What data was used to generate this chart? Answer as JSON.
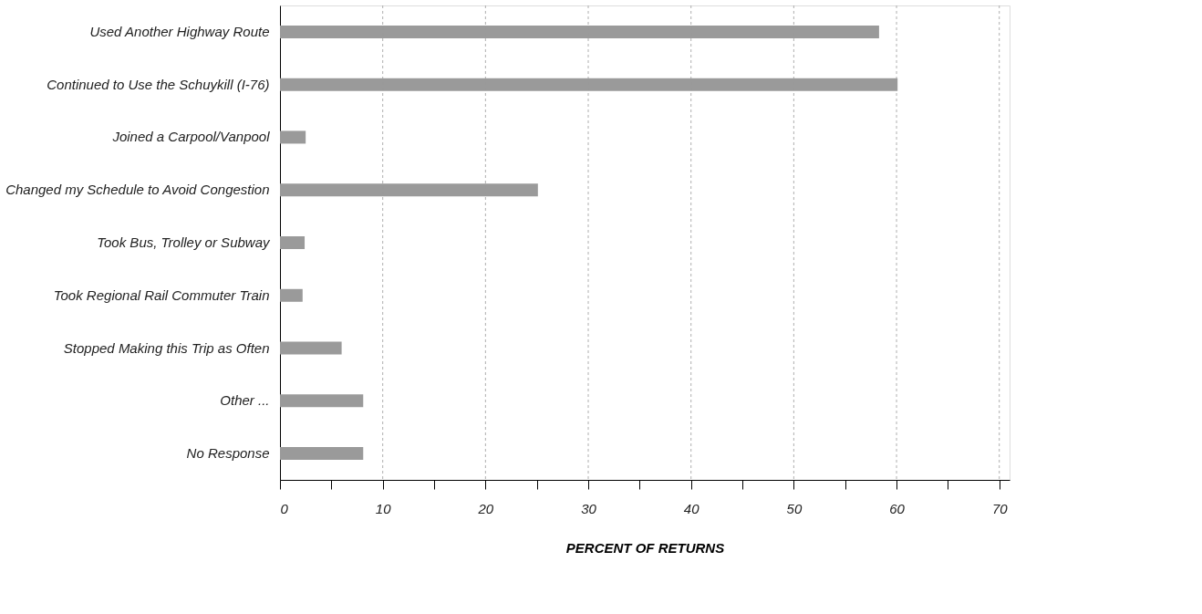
{
  "chart_data": {
    "type": "bar",
    "orientation": "horizontal",
    "xlabel": "PERCENT OF RETURNS",
    "categories": [
      "Used Another Highway Route",
      "Continued to Use the Schuykill (I-76)",
      "Joined a Carpool/Vanpool",
      "Changed my Schedule to Avoid Congestion",
      "Took Bus, Trolley or Subway",
      "Took Regional Rail Commuter Train",
      "Stopped Making this Trip as Often",
      "Other ...",
      "No Response"
    ],
    "values": [
      58.3,
      60.1,
      2.5,
      25.1,
      2.4,
      2.2,
      6.0,
      8.1,
      8.1
    ],
    "color": "#9a9a9a",
    "xlim": [
      0,
      71
    ],
    "xticks": [
      0,
      {
        "value": 5,
        "label": null
      },
      10,
      {
        "value": 15,
        "label": null
      },
      20,
      {
        "value": 25,
        "label": null
      },
      30,
      {
        "value": 35,
        "label": null
      },
      40,
      {
        "value": 45,
        "label": null
      },
      50,
      {
        "value": 55,
        "label": null
      },
      60,
      {
        "value": 65,
        "label": null
      },
      70
    ],
    "grid": "x"
  }
}
